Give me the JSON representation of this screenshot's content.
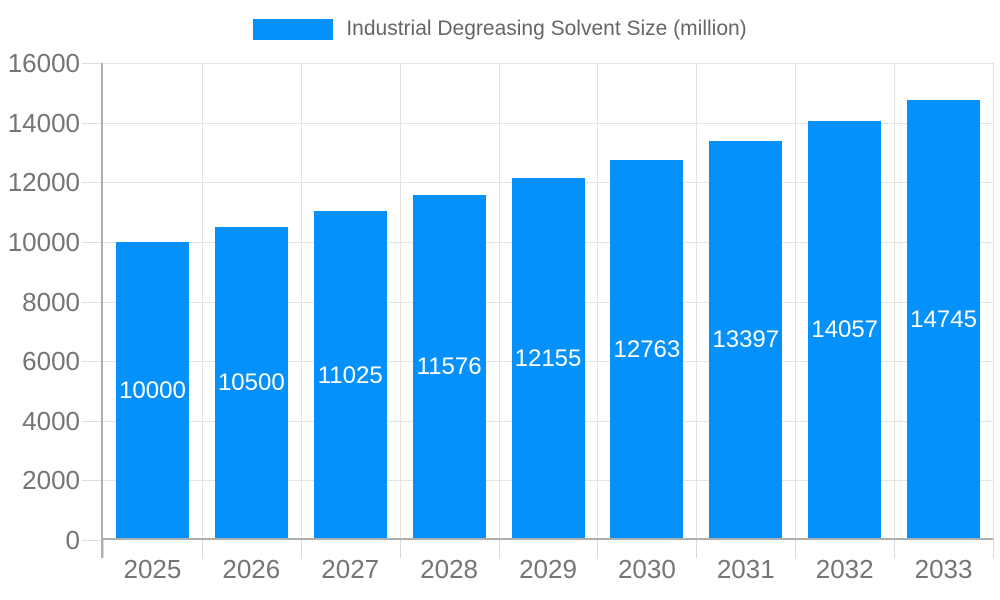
{
  "chart_data": {
    "type": "bar",
    "title": "Industrial Degreasing Solvent Size (million)",
    "legend_position": "top",
    "categories": [
      "2025",
      "2026",
      "2027",
      "2028",
      "2029",
      "2030",
      "2031",
      "2032",
      "2033"
    ],
    "series": [
      {
        "name": "Industrial Degreasing Solvent Size (million)",
        "values": [
          10000,
          10500,
          11025,
          11576,
          12155,
          12763,
          13397,
          14057,
          14745
        ]
      }
    ],
    "value_labels_shown": true,
    "xlabel": "",
    "ylabel": "",
    "ylim": [
      0,
      16000
    ],
    "yticks": [
      0,
      2000,
      4000,
      6000,
      8000,
      10000,
      12000,
      14000,
      16000
    ],
    "grid": true,
    "colors": {
      "bar": "#0591fb",
      "value_label": "#ffffff",
      "axis_text": "#757575",
      "legend_text": "#666666",
      "gridline": "#e3e3e3",
      "axis_line": "#aeaeae"
    }
  }
}
